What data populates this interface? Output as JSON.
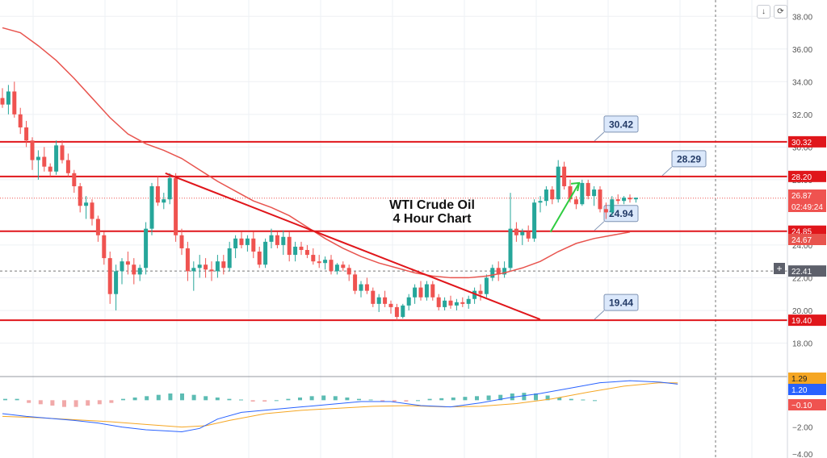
{
  "title": {
    "line1": "WTI Crude Oil",
    "line2": "4 Hour Chart"
  },
  "toolbar": {
    "down_icon": "↓",
    "refresh_icon": "⟳",
    "cross_icon": "+"
  },
  "colors": {
    "bull": "#26a69a",
    "bear": "#ef5350",
    "level": "#e0161b",
    "ma": "#e8544e",
    "macd": "#2962ff",
    "signal": "#f5a623",
    "axis_text": "#555555"
  },
  "chart_data": {
    "type": "candlestick",
    "price_axis": {
      "ylim": [
        16.0,
        39.0
      ],
      "ticks": [
        "38.00",
        "36.00",
        "34.00",
        "32.00",
        "30.00",
        "28.00",
        "24.00",
        "22.00",
        "20.00",
        "18.00"
      ]
    },
    "indicator_axis": {
      "ylim": [
        -4.3,
        1.7
      ],
      "ticks": [
        "−2.00",
        "−4.00"
      ]
    },
    "candles": [
      [
        33.0,
        33.6,
        32.4,
        32.6
      ],
      [
        32.6,
        33.8,
        32.0,
        33.4
      ],
      [
        33.4,
        34.0,
        31.8,
        32.0
      ],
      [
        32.0,
        32.4,
        30.8,
        31.2
      ],
      [
        31.2,
        31.6,
        30.0,
        30.4
      ],
      [
        30.4,
        30.6,
        28.6,
        29.2
      ],
      [
        29.2,
        29.8,
        28.0,
        29.4
      ],
      [
        29.4,
        30.0,
        28.5,
        28.8
      ],
      [
        28.8,
        29.0,
        28.2,
        28.5
      ],
      [
        28.5,
        30.4,
        28.3,
        30.1
      ],
      [
        30.1,
        30.4,
        29.0,
        29.2
      ],
      [
        29.2,
        29.6,
        28.2,
        28.4
      ],
      [
        28.4,
        28.6,
        27.2,
        27.6
      ],
      [
        27.6,
        27.8,
        26.0,
        26.4
      ],
      [
        26.4,
        27.0,
        25.6,
        26.6
      ],
      [
        26.6,
        26.8,
        25.2,
        25.6
      ],
      [
        25.6,
        25.8,
        24.2,
        24.6
      ],
      [
        24.6,
        24.8,
        22.8,
        23.2
      ],
      [
        23.2,
        23.6,
        20.4,
        21.0
      ],
      [
        21.0,
        22.8,
        20.0,
        22.4
      ],
      [
        22.4,
        23.2,
        21.6,
        23.0
      ],
      [
        23.0,
        23.6,
        22.2,
        22.8
      ],
      [
        22.8,
        23.2,
        21.6,
        22.2
      ],
      [
        22.2,
        22.8,
        21.8,
        22.6
      ],
      [
        22.6,
        25.4,
        22.2,
        25.0
      ],
      [
        25.0,
        27.8,
        24.6,
        27.6
      ],
      [
        27.6,
        28.2,
        26.4,
        26.6
      ],
      [
        26.6,
        27.2,
        26.2,
        26.8
      ],
      [
        26.8,
        28.4,
        26.5,
        28.1
      ],
      [
        28.1,
        28.4,
        24.2,
        24.6
      ],
      [
        24.6,
        25.0,
        23.4,
        23.8
      ],
      [
        23.8,
        24.2,
        21.8,
        22.4
      ],
      [
        22.4,
        23.0,
        21.2,
        22.6
      ],
      [
        22.6,
        23.4,
        22.0,
        22.8
      ],
      [
        22.8,
        23.2,
        22.0,
        22.5
      ],
      [
        22.5,
        23.0,
        21.8,
        22.4
      ],
      [
        22.4,
        23.4,
        22.0,
        23.0
      ],
      [
        23.0,
        23.4,
        22.2,
        22.6
      ],
      [
        22.6,
        24.2,
        22.4,
        23.8
      ],
      [
        23.8,
        24.6,
        23.2,
        24.4
      ],
      [
        24.4,
        24.8,
        23.8,
        24.0
      ],
      [
        24.0,
        24.6,
        23.6,
        24.4
      ],
      [
        24.4,
        24.8,
        23.2,
        23.6
      ],
      [
        23.6,
        23.9,
        22.6,
        22.8
      ],
      [
        22.8,
        24.4,
        22.6,
        24.2
      ],
      [
        24.2,
        25.0,
        23.8,
        24.6
      ],
      [
        24.6,
        24.8,
        23.8,
        24.0
      ],
      [
        24.0,
        24.9,
        23.4,
        24.5
      ],
      [
        24.5,
        24.8,
        23.0,
        23.4
      ],
      [
        23.4,
        24.2,
        23.0,
        23.9
      ],
      [
        23.9,
        24.2,
        23.4,
        23.7
      ],
      [
        23.7,
        24.0,
        23.2,
        23.4
      ],
      [
        23.4,
        23.8,
        22.8,
        23.0
      ],
      [
        23.0,
        23.4,
        22.6,
        22.9
      ],
      [
        22.9,
        23.3,
        22.5,
        23.1
      ],
      [
        23.1,
        23.4,
        22.2,
        22.4
      ],
      [
        22.4,
        22.9,
        22.2,
        22.8
      ],
      [
        22.8,
        23.0,
        22.4,
        22.6
      ],
      [
        22.6,
        22.8,
        21.8,
        22.2
      ],
      [
        22.2,
        22.4,
        21.0,
        21.2
      ],
      [
        21.2,
        21.8,
        20.8,
        21.6
      ],
      [
        21.6,
        22.0,
        21.0,
        21.2
      ],
      [
        21.2,
        21.4,
        20.2,
        20.4
      ],
      [
        20.4,
        21.0,
        19.9,
        20.8
      ],
      [
        20.8,
        21.2,
        20.2,
        20.4
      ],
      [
        20.4,
        20.6,
        19.8,
        20.2
      ],
      [
        20.2,
        20.4,
        19.4,
        19.6
      ],
      [
        19.6,
        20.4,
        19.5,
        20.3
      ],
      [
        20.3,
        21.0,
        20.0,
        20.8
      ],
      [
        20.8,
        21.6,
        20.4,
        21.4
      ],
      [
        21.4,
        21.8,
        20.6,
        20.8
      ],
      [
        20.8,
        21.8,
        20.6,
        21.6
      ],
      [
        21.6,
        21.8,
        20.6,
        20.8
      ],
      [
        20.8,
        21.0,
        20.0,
        20.2
      ],
      [
        20.2,
        20.8,
        20.0,
        20.6
      ],
      [
        20.6,
        20.9,
        20.1,
        20.3
      ],
      [
        20.3,
        20.7,
        20.0,
        20.5
      ],
      [
        20.5,
        20.8,
        20.2,
        20.4
      ],
      [
        20.4,
        20.9,
        20.1,
        20.7
      ],
      [
        20.7,
        21.4,
        20.4,
        21.2
      ],
      [
        21.2,
        21.6,
        20.6,
        21.0
      ],
      [
        21.0,
        22.2,
        20.8,
        22.0
      ],
      [
        22.0,
        22.8,
        21.8,
        22.6
      ],
      [
        22.6,
        23.0,
        21.8,
        22.2
      ],
      [
        22.2,
        23.0,
        22.0,
        22.6
      ],
      [
        22.6,
        27.2,
        22.4,
        25.0
      ],
      [
        25.0,
        25.4,
        24.2,
        24.6
      ],
      [
        24.6,
        25.0,
        24.0,
        24.8
      ],
      [
        24.8,
        25.2,
        24.2,
        24.4
      ],
      [
        24.4,
        26.8,
        24.2,
        26.6
      ],
      [
        26.6,
        27.0,
        26.0,
        26.7
      ],
      [
        26.7,
        27.6,
        26.4,
        27.4
      ],
      [
        27.4,
        27.6,
        26.5,
        26.8
      ],
      [
        26.8,
        29.2,
        26.6,
        28.8
      ],
      [
        28.8,
        29.1,
        27.4,
        27.6
      ],
      [
        27.6,
        28.0,
        26.6,
        26.8
      ],
      [
        26.8,
        27.0,
        26.2,
        26.5
      ],
      [
        26.5,
        28.0,
        26.4,
        27.8
      ],
      [
        27.8,
        28.0,
        26.8,
        27.0
      ],
      [
        27.0,
        27.6,
        26.4,
        27.4
      ],
      [
        27.4,
        27.6,
        26.0,
        26.2
      ],
      [
        26.2,
        26.6,
        25.6,
        26.0
      ],
      [
        26.0,
        27.0,
        25.8,
        26.8
      ],
      [
        26.8,
        27.1,
        26.5,
        26.7
      ],
      [
        26.7,
        27.0,
        26.5,
        26.9
      ],
      [
        26.9,
        27.1,
        26.6,
        26.8
      ],
      [
        26.8,
        26.9,
        26.6,
        26.9
      ]
    ],
    "ma": [
      [
        0,
        37.3
      ],
      [
        3,
        37.0
      ],
      [
        6,
        36.2
      ],
      [
        9,
        35.3
      ],
      [
        12,
        34.2
      ],
      [
        15,
        33.0
      ],
      [
        18,
        31.8
      ],
      [
        21,
        30.8
      ],
      [
        24,
        30.2
      ],
      [
        27,
        29.8
      ],
      [
        30,
        29.3
      ],
      [
        33,
        28.6
      ],
      [
        36,
        27.9
      ],
      [
        39,
        27.3
      ],
      [
        42,
        26.7
      ],
      [
        45,
        26.3
      ],
      [
        48,
        25.8
      ],
      [
        51,
        25.1
      ],
      [
        54,
        24.4
      ],
      [
        57,
        23.8
      ],
      [
        60,
        23.3
      ],
      [
        63,
        22.9
      ],
      [
        66,
        22.6
      ],
      [
        69,
        22.3
      ],
      [
        72,
        22.1
      ],
      [
        75,
        22.0
      ],
      [
        78,
        22.0
      ],
      [
        81,
        22.1
      ],
      [
        84,
        22.3
      ],
      [
        87,
        22.6
      ],
      [
        90,
        23.0
      ],
      [
        93,
        23.6
      ],
      [
        96,
        24.1
      ],
      [
        99,
        24.4
      ],
      [
        102,
        24.6
      ],
      [
        105,
        24.8
      ]
    ],
    "levels": [
      {
        "label": "30.42",
        "price": 30.32,
        "axis": "30.32"
      },
      {
        "label": "28.29",
        "price": 28.2,
        "axis": "28.20"
      },
      {
        "label": "24.94",
        "price": 24.85,
        "axis": "24.85"
      },
      {
        "label": "19.44",
        "price": 19.4,
        "axis": "19.40"
      }
    ],
    "price_badges": {
      "last": "26.87",
      "countdown": "02:49:24",
      "ma": "24.67",
      "cross": "22.41"
    },
    "trendline": [
      [
        6.4,
        28.4
      ],
      [
        20.9,
        19.45
      ]
    ],
    "green_arrow": [
      [
        19.2,
        24.8
      ],
      [
        20.2,
        27.8
      ]
    ],
    "macd": [
      [
        0,
        -1.0
      ],
      [
        4,
        -1.2
      ],
      [
        8,
        -1.35
      ],
      [
        12,
        -1.5
      ],
      [
        16,
        -1.7
      ],
      [
        20,
        -2.0
      ],
      [
        24,
        -2.2
      ],
      [
        28,
        -2.3
      ],
      [
        30,
        -2.35
      ],
      [
        33,
        -2.1
      ],
      [
        36,
        -1.4
      ],
      [
        40,
        -0.9
      ],
      [
        45,
        -0.7
      ],
      [
        50,
        -0.5
      ],
      [
        55,
        -0.3
      ],
      [
        60,
        -0.1
      ],
      [
        65,
        -0.1
      ],
      [
        70,
        -0.4
      ],
      [
        75,
        -0.5
      ],
      [
        80,
        -0.2
      ],
      [
        85,
        0.2
      ],
      [
        90,
        0.5
      ],
      [
        95,
        0.9
      ],
      [
        100,
        1.3
      ],
      [
        105,
        1.45
      ],
      [
        110,
        1.35
      ],
      [
        113,
        1.2
      ]
    ],
    "signal": [
      [
        0,
        -1.2
      ],
      [
        6,
        -1.3
      ],
      [
        12,
        -1.45
      ],
      [
        18,
        -1.6
      ],
      [
        24,
        -1.8
      ],
      [
        30,
        -2.0
      ],
      [
        34,
        -1.9
      ],
      [
        38,
        -1.5
      ],
      [
        44,
        -1.0
      ],
      [
        50,
        -0.75
      ],
      [
        56,
        -0.6
      ],
      [
        62,
        -0.45
      ],
      [
        68,
        -0.4
      ],
      [
        74,
        -0.5
      ],
      [
        80,
        -0.45
      ],
      [
        86,
        -0.25
      ],
      [
        92,
        0.1
      ],
      [
        98,
        0.6
      ],
      [
        104,
        1.05
      ],
      [
        110,
        1.3
      ],
      [
        113,
        1.29
      ]
    ],
    "hist": [
      0.1,
      0.1,
      -0.2,
      -0.3,
      -0.4,
      -0.5,
      -0.5,
      -0.4,
      -0.3,
      -0.2,
      0.1,
      0.2,
      0.3,
      0.4,
      0.5,
      0.5,
      0.4,
      0.3,
      0.2,
      0.1,
      0.05,
      -0.1,
      -0.1,
      0.0,
      0.1,
      0.2,
      0.3,
      0.35,
      0.3,
      0.2,
      0.1,
      0.05,
      -0.1,
      -0.1,
      -0.1,
      0.0,
      0.1,
      0.15,
      0.2,
      0.25,
      0.3,
      0.35,
      0.4,
      0.5,
      0.55,
      0.5,
      0.35,
      0.2,
      0.1,
      0.05,
      0.0
    ],
    "indicator_badges": [
      {
        "value": "1.29",
        "color": "#f5a623"
      },
      {
        "value": "1.20",
        "color": "#2962ff"
      },
      {
        "value": "−0.10",
        "color": "#ef5350"
      }
    ]
  }
}
